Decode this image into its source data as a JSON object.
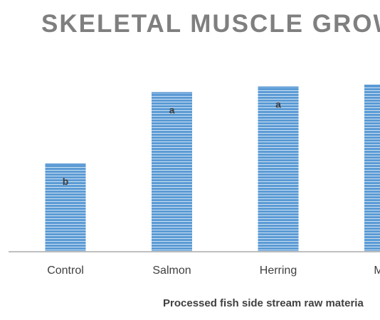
{
  "chart_data": {
    "type": "bar",
    "title": "SKELETAL MUSCLE GROWT",
    "xlabel": "Processed fish side stream raw materia",
    "ylabel": "",
    "categories": [
      "Control",
      "Salmon",
      "Herring",
      "Mac"
    ],
    "values": [
      0.47,
      0.85,
      0.88,
      0.89
    ],
    "ylim": [
      0,
      1
    ],
    "annotations": [
      "b",
      "a",
      "a",
      ""
    ],
    "grid": false,
    "legend": "none"
  },
  "colors": {
    "bar_fill": "#5b9bd5",
    "bar_stripe": "#ffffff",
    "title": "#7f7f7f",
    "axis": "#bfbfbf",
    "tick_text": "#404040",
    "xlabel": "#404040",
    "annotation": "#404040"
  }
}
